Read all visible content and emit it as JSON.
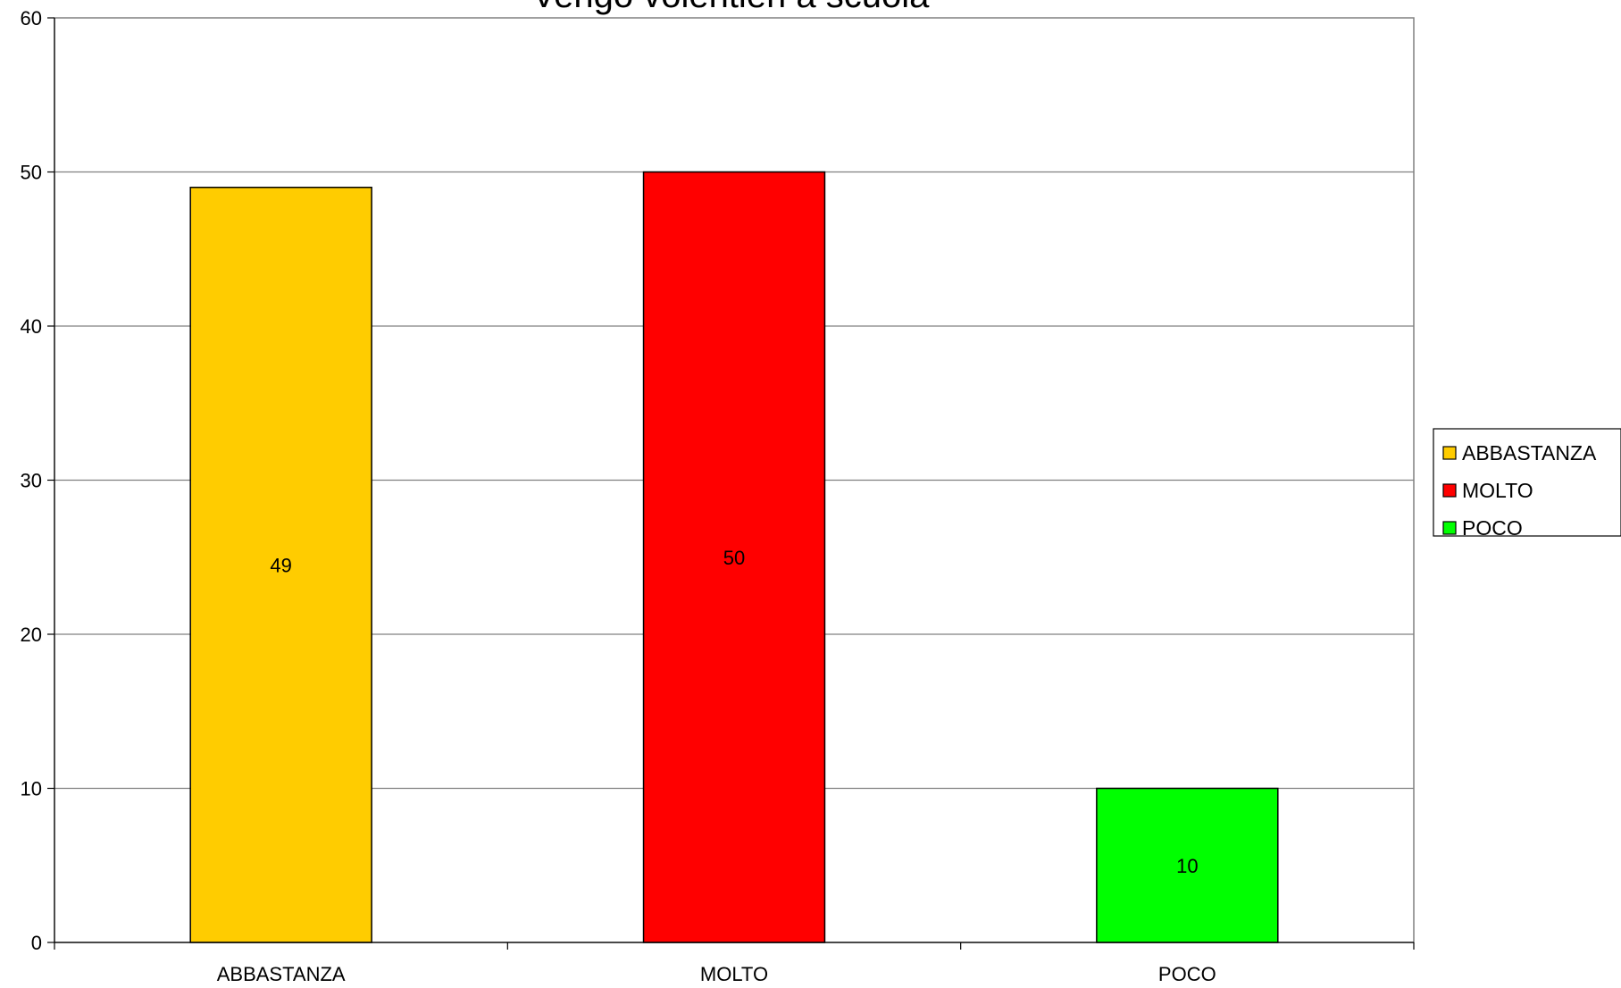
{
  "chart_data": {
    "type": "bar",
    "title": "Vengo volentieri a scuola",
    "xlabel": "",
    "ylabel": "",
    "categories": [
      "ABBASTANZA",
      "MOLTO",
      "POCO"
    ],
    "values": [
      49,
      50,
      10
    ],
    "data_labels": [
      "49",
      "50",
      "10"
    ],
    "colors": [
      "#FFCC00",
      "#FF0000",
      "#00FF00"
    ],
    "ylim": [
      0,
      60
    ],
    "yticks": [
      0,
      10,
      20,
      30,
      40,
      50,
      60
    ],
    "grid": true,
    "legend": {
      "placement": "right",
      "entries": [
        {
          "label": "ABBASTANZA",
          "color": "#FFCC00"
        },
        {
          "label": "MOLTO",
          "color": "#FF0000"
        },
        {
          "label": "POCO",
          "color": "#00FF00"
        }
      ]
    }
  }
}
